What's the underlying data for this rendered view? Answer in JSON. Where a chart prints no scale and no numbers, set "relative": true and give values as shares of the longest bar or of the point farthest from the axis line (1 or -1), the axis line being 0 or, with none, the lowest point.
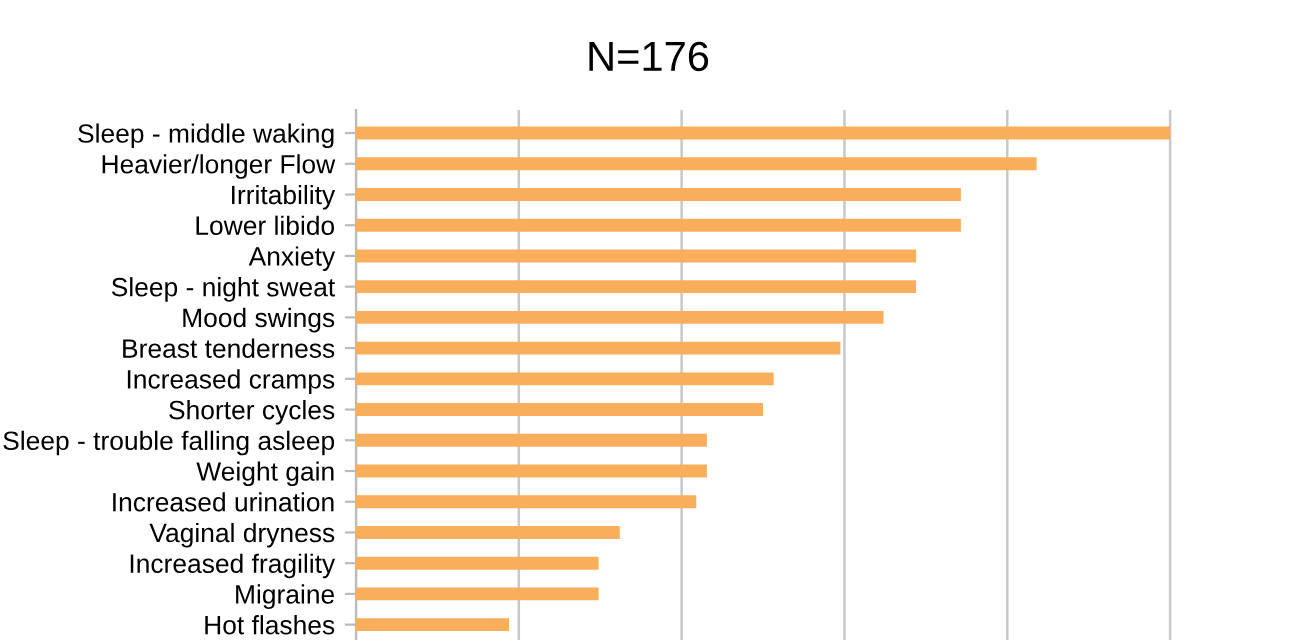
{
  "chart_data": {
    "type": "bar",
    "orientation": "horizontal",
    "relative": true,
    "title": "N=176",
    "categories": [
      "Sleep - middle waking",
      "Heavier/longer Flow",
      "Irritability",
      "Lower libido",
      "Anxiety",
      "Sleep - night sweat",
      "Mood swings",
      "Breast tenderness",
      "Increased cramps",
      "Shorter cycles",
      "Sleep - trouble falling asleep",
      "Weight gain",
      "Increased urination",
      "Vaginal dryness",
      "Increased fragility",
      "Migraine",
      "Hot flashes"
    ],
    "values": [
      1,
      0.836,
      0.743,
      0.743,
      0.688,
      0.688,
      0.648,
      0.595,
      0.513,
      0.5,
      0.431,
      0.431,
      0.418,
      0.324,
      0.298,
      0.298,
      0.188
    ],
    "color": "#f9ae5b",
    "grid": "x",
    "legend": false
  }
}
